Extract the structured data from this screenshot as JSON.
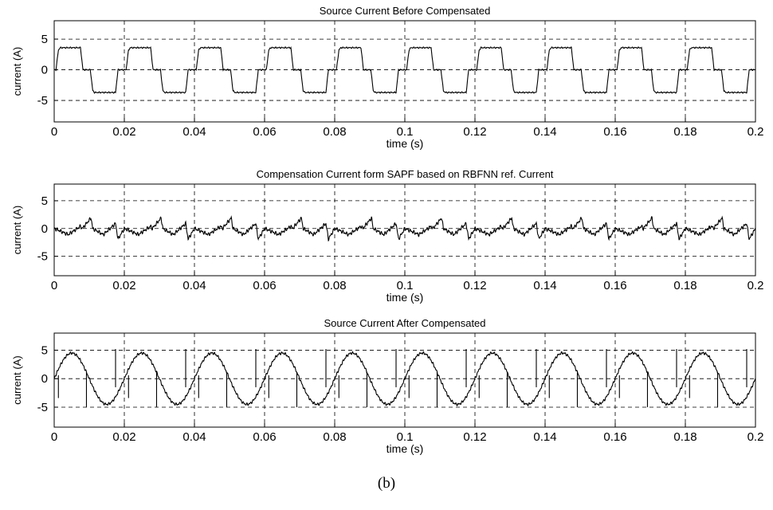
{
  "caption": "(b)",
  "chart_data": [
    {
      "type": "line",
      "title": "Source Current Before Compensated",
      "xlabel": "time (s)",
      "ylabel": "current (A)",
      "xlim": [
        0,
        0.2
      ],
      "ylim": [
        -8.5,
        8
      ],
      "xticks": [
        "0",
        "0.02",
        "0.04",
        "0.06",
        "0.08",
        "0.1",
        "0.12",
        "0.14",
        "0.16",
        "0.18",
        "0.2"
      ],
      "yticks": [
        "5",
        "0",
        "-5"
      ],
      "grid": "dashed",
      "signal": "quasi-square wave, 50 Hz (period 0.02 s)",
      "series": [
        {
          "points": [
            [
              0,
              0
            ],
            [
              0.0005,
              0
            ],
            [
              0.0012,
              3.2
            ],
            [
              0.0017,
              3.6
            ],
            [
              0.0075,
              3.6
            ],
            [
              0.0082,
              0
            ],
            [
              0.0103,
              0
            ],
            [
              0.011,
              -3.4
            ],
            [
              0.0115,
              -3.7
            ],
            [
              0.0175,
              -3.7
            ],
            [
              0.0182,
              0
            ],
            [
              0.02,
              0
            ]
          ]
        }
      ]
    },
    {
      "type": "line",
      "title": "Compensation Current form SAPF based on RBFNN ref. Current",
      "xlabel": "time (s)",
      "ylabel": "current (A)",
      "xlim": [
        0,
        0.2
      ],
      "ylim": [
        -8.5,
        8
      ],
      "xticks": [
        "0",
        "0.02",
        "0.04",
        "0.06",
        "0.08",
        "0.1",
        "0.12",
        "0.14",
        "0.16",
        "0.18",
        "0.2"
      ],
      "yticks": [
        "5",
        "0",
        "-5"
      ],
      "grid": "dashed",
      "signal": "sawtooth-shaped compensation current, 50 Hz",
      "series": [
        {
          "points": [
            [
              0,
              0
            ],
            [
              0.0012,
              -0.3
            ],
            [
              0.004,
              -1.1
            ],
            [
              0.0075,
              0.4
            ],
            [
              0.008,
              0
            ],
            [
              0.0105,
              1.9
            ],
            [
              0.011,
              0
            ],
            [
              0.014,
              -1.1
            ],
            [
              0.0175,
              0.9
            ],
            [
              0.0182,
              -1.9
            ],
            [
              0.02,
              0
            ]
          ]
        }
      ]
    },
    {
      "type": "line",
      "title": "Source Current After Compensated",
      "xlabel": "time (s)",
      "ylabel": "current (A)",
      "xlim": [
        0,
        0.2
      ],
      "ylim": [
        -8.5,
        8
      ],
      "xticks": [
        "0",
        "0.02",
        "0.04",
        "0.06",
        "0.08",
        "0.1",
        "0.12",
        "0.14",
        "0.16",
        "0.18",
        "0.2"
      ],
      "yticks": [
        "5",
        "0",
        "-5"
      ],
      "grid": "dashed",
      "signal": "near-sinusoidal current, amplitude ~4.5 A, 50 Hz, with switching spikes",
      "series": [
        {
          "points": [
            [
              0,
              0
            ],
            [
              0.005,
              4.5
            ],
            [
              0.01,
              0
            ],
            [
              0.015,
              -4.5
            ],
            [
              0.02,
              0
            ]
          ]
        }
      ]
    }
  ]
}
